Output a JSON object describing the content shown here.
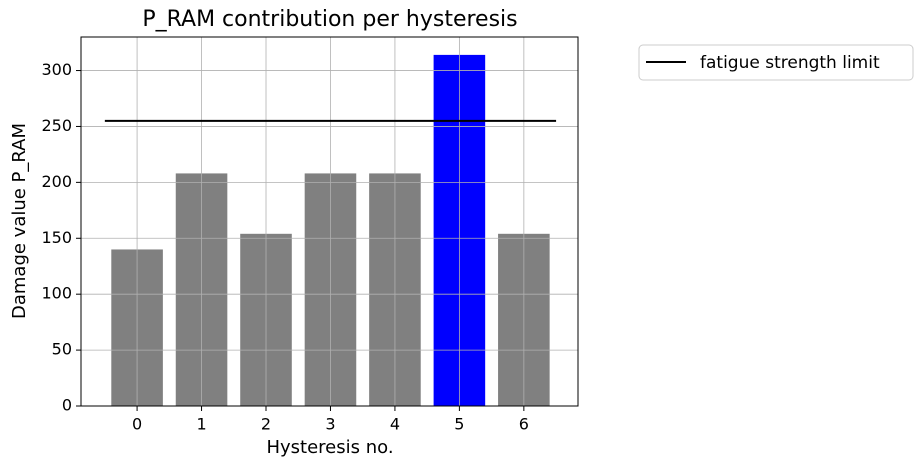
{
  "chart_data": {
    "type": "bar",
    "title": "P_RAM contribution per hysteresis",
    "x_label": "Hysteresis no.",
    "y_label": "Damage value P_RAM",
    "x": [
      0,
      1,
      2,
      3,
      4,
      5,
      6
    ],
    "values": [
      140,
      208,
      154,
      208,
      208,
      314,
      154
    ],
    "colors": [
      "#808080",
      "#808080",
      "#808080",
      "#808080",
      "#808080",
      "#0000ff",
      "#808080"
    ],
    "xlim": [
      -0.87,
      6.84
    ],
    "xticks": [
      0,
      1,
      2,
      3,
      4,
      5,
      6
    ],
    "ylim": [
      0,
      330
    ],
    "yticks": [
      0,
      50,
      100,
      150,
      200,
      250,
      300
    ],
    "grid": true,
    "hline": {
      "name": "fatigue strength limit",
      "value": 255,
      "xmin": -0.5,
      "xmax": 6.5,
      "color": "#000000"
    },
    "legend": "outside upper right"
  }
}
